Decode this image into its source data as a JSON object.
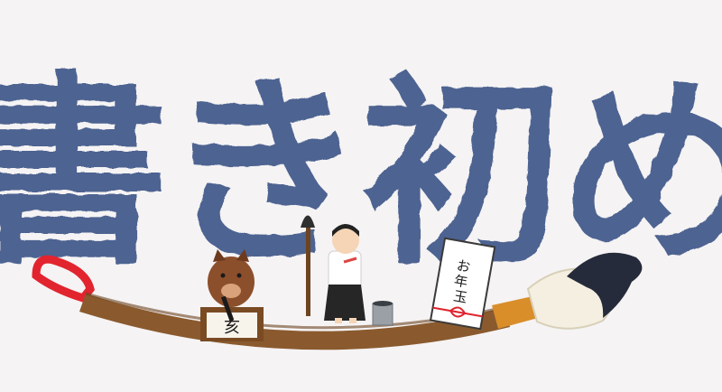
{
  "title": {
    "text": "書き初め",
    "color": "#4d6391"
  },
  "envelope": {
    "text": "お年玉",
    "ribbon_color": "#e0232d"
  },
  "paper": {
    "character": "亥"
  },
  "colors": {
    "background": "#f5f3f4",
    "brush_handle": "#8a5a2e",
    "brush_ring": "#d98e2a",
    "brush_tip_ink": "#262b3b",
    "brush_loop": "#e2242f",
    "boar_fur": "#8c4f2c"
  },
  "icons": [
    "giant-brush",
    "boar",
    "boy-with-brush",
    "ink-bucket",
    "otoshidama-envelope",
    "calligraphy-paper"
  ]
}
